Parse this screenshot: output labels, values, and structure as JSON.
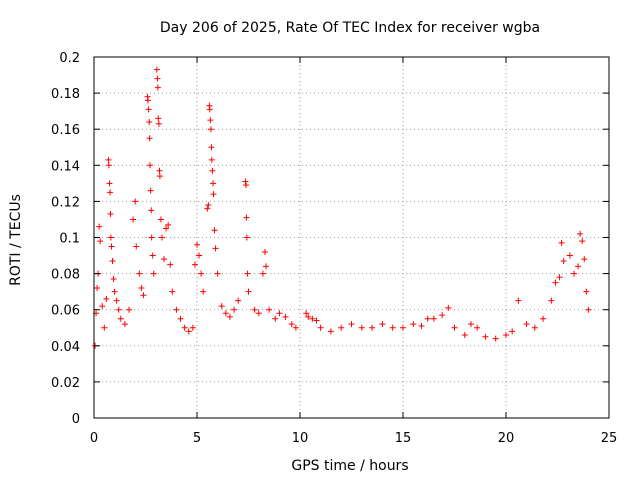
{
  "chart_data": {
    "type": "scatter",
    "title": "Day 206 of 2025, Rate Of TEC Index for receiver wgba",
    "xlabel": "GPS time / hours",
    "ylabel": "ROTI / TECUs",
    "xlim": [
      0,
      25
    ],
    "ylim": [
      0,
      0.2
    ],
    "x_ticks": [
      0,
      5,
      10,
      15,
      20,
      25
    ],
    "x_tick_labels": [
      "0",
      "5",
      "10",
      "15",
      "20",
      "25"
    ],
    "y_ticks": [
      0,
      0.02,
      0.04,
      0.06,
      0.08,
      0.1,
      0.12,
      0.14,
      0.16,
      0.18,
      0.2
    ],
    "y_tick_labels": [
      "0",
      "0.02",
      "0.04",
      "0.06",
      "0.08",
      "0.1",
      "0.12",
      "0.14",
      "0.16",
      "0.18",
      "0.2"
    ],
    "grid": true,
    "marker": "+",
    "color": "#ff0000",
    "series": [
      {
        "name": "ROTI",
        "points": [
          [
            0.05,
            0.04
          ],
          [
            0.1,
            0.058
          ],
          [
            0.15,
            0.072
          ],
          [
            0.2,
            0.08
          ],
          [
            0.25,
            0.106
          ],
          [
            0.3,
            0.098
          ],
          [
            0.4,
            0.062
          ],
          [
            0.5,
            0.05
          ],
          [
            0.6,
            0.066
          ],
          [
            0.7,
            0.143
          ],
          [
            0.72,
            0.14
          ],
          [
            0.75,
            0.13
          ],
          [
            0.78,
            0.125
          ],
          [
            0.8,
            0.113
          ],
          [
            0.82,
            0.1
          ],
          [
            0.85,
            0.095
          ],
          [
            0.9,
            0.087
          ],
          [
            0.95,
            0.077
          ],
          [
            1.0,
            0.07
          ],
          [
            1.1,
            0.065
          ],
          [
            1.2,
            0.06
          ],
          [
            1.3,
            0.055
          ],
          [
            1.5,
            0.052
          ],
          [
            1.7,
            0.06
          ],
          [
            1.9,
            0.11
          ],
          [
            2.0,
            0.12
          ],
          [
            2.05,
            0.095
          ],
          [
            2.2,
            0.08
          ],
          [
            2.3,
            0.072
          ],
          [
            2.4,
            0.068
          ],
          [
            2.6,
            0.178
          ],
          [
            2.62,
            0.176
          ],
          [
            2.65,
            0.171
          ],
          [
            2.68,
            0.164
          ],
          [
            2.7,
            0.155
          ],
          [
            2.72,
            0.14
          ],
          [
            2.75,
            0.126
          ],
          [
            2.78,
            0.115
          ],
          [
            2.8,
            0.1
          ],
          [
            2.85,
            0.09
          ],
          [
            2.9,
            0.08
          ],
          [
            3.05,
            0.193
          ],
          [
            3.08,
            0.188
          ],
          [
            3.1,
            0.183
          ],
          [
            3.12,
            0.166
          ],
          [
            3.15,
            0.163
          ],
          [
            3.18,
            0.137
          ],
          [
            3.2,
            0.134
          ],
          [
            3.25,
            0.11
          ],
          [
            3.3,
            0.1
          ],
          [
            3.4,
            0.088
          ],
          [
            3.5,
            0.105
          ],
          [
            3.6,
            0.107
          ],
          [
            3.7,
            0.085
          ],
          [
            3.8,
            0.07
          ],
          [
            4.0,
            0.06
          ],
          [
            4.2,
            0.055
          ],
          [
            4.4,
            0.05
          ],
          [
            4.6,
            0.048
          ],
          [
            4.8,
            0.05
          ],
          [
            4.9,
            0.085
          ],
          [
            5.0,
            0.096
          ],
          [
            5.1,
            0.09
          ],
          [
            5.2,
            0.08
          ],
          [
            5.3,
            0.07
          ],
          [
            5.5,
            0.116
          ],
          [
            5.55,
            0.118
          ],
          [
            5.6,
            0.173
          ],
          [
            5.62,
            0.171
          ],
          [
            5.65,
            0.165
          ],
          [
            5.68,
            0.16
          ],
          [
            5.7,
            0.15
          ],
          [
            5.72,
            0.143
          ],
          [
            5.75,
            0.137
          ],
          [
            5.78,
            0.13
          ],
          [
            5.8,
            0.124
          ],
          [
            5.85,
            0.104
          ],
          [
            5.9,
            0.094
          ],
          [
            6.0,
            0.08
          ],
          [
            6.2,
            0.062
          ],
          [
            6.4,
            0.058
          ],
          [
            6.6,
            0.056
          ],
          [
            6.8,
            0.06
          ],
          [
            7.0,
            0.065
          ],
          [
            7.35,
            0.131
          ],
          [
            7.38,
            0.129
          ],
          [
            7.4,
            0.111
          ],
          [
            7.42,
            0.1
          ],
          [
            7.45,
            0.08
          ],
          [
            7.5,
            0.07
          ],
          [
            7.8,
            0.06
          ],
          [
            8.0,
            0.058
          ],
          [
            8.2,
            0.08
          ],
          [
            8.3,
            0.092
          ],
          [
            8.35,
            0.084
          ],
          [
            8.5,
            0.06
          ],
          [
            8.8,
            0.055
          ],
          [
            9.0,
            0.058
          ],
          [
            9.3,
            0.056
          ],
          [
            9.6,
            0.052
          ],
          [
            9.8,
            0.05
          ],
          [
            10.3,
            0.058
          ],
          [
            10.4,
            0.056
          ],
          [
            10.6,
            0.055
          ],
          [
            10.8,
            0.054
          ],
          [
            11.0,
            0.05
          ],
          [
            11.5,
            0.048
          ],
          [
            12.0,
            0.05
          ],
          [
            12.5,
            0.052
          ],
          [
            13.0,
            0.05
          ],
          [
            13.5,
            0.05
          ],
          [
            14.0,
            0.052
          ],
          [
            14.5,
            0.05
          ],
          [
            15.0,
            0.05
          ],
          [
            15.5,
            0.052
          ],
          [
            15.9,
            0.051
          ],
          [
            16.2,
            0.055
          ],
          [
            16.5,
            0.055
          ],
          [
            16.9,
            0.057
          ],
          [
            17.2,
            0.061
          ],
          [
            17.5,
            0.05
          ],
          [
            18.0,
            0.046
          ],
          [
            18.3,
            0.052
          ],
          [
            18.6,
            0.05
          ],
          [
            19.0,
            0.045
          ],
          [
            19.5,
            0.044
          ],
          [
            20.0,
            0.046
          ],
          [
            20.3,
            0.048
          ],
          [
            20.6,
            0.065
          ],
          [
            21.0,
            0.052
          ],
          [
            21.4,
            0.05
          ],
          [
            21.8,
            0.055
          ],
          [
            22.2,
            0.065
          ],
          [
            22.4,
            0.075
          ],
          [
            22.6,
            0.078
          ],
          [
            22.7,
            0.097
          ],
          [
            22.8,
            0.087
          ],
          [
            23.1,
            0.09
          ],
          [
            23.3,
            0.08
          ],
          [
            23.5,
            0.084
          ],
          [
            23.6,
            0.102
          ],
          [
            23.7,
            0.098
          ],
          [
            23.8,
            0.088
          ],
          [
            23.9,
            0.07
          ],
          [
            24.0,
            0.06
          ]
        ]
      }
    ]
  }
}
